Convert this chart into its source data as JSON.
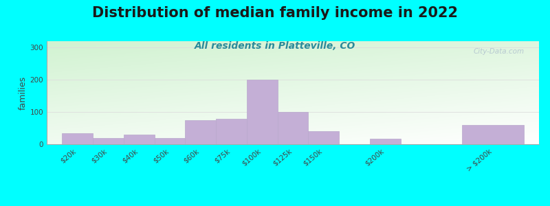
{
  "title": "Distribution of median family income in 2022",
  "subtitle": "All residents in Platteville, CO",
  "ylabel": "families",
  "bg_outer": "#00FFFF",
  "bar_color": "#c4afd6",
  "bar_edge_color": "#b8a8cc",
  "watermark": "City-Data.com",
  "categories": [
    "$20k",
    "$30k",
    "$40k",
    "$50k",
    "$60k",
    "$75k",
    "$100k",
    "$125k",
    "$150k",
    "$200k",
    "> $200k"
  ],
  "values": [
    35,
    20,
    30,
    20,
    75,
    80,
    200,
    100,
    40,
    18,
    60
  ],
  "bar_positions": [
    0,
    1,
    2,
    3,
    4,
    5,
    6,
    7,
    8,
    10,
    13
  ],
  "bar_widths": [
    1,
    1,
    1,
    1,
    1,
    1,
    1,
    1,
    1,
    1,
    2
  ],
  "ylim": [
    0,
    320
  ],
  "yticks": [
    0,
    100,
    200,
    300
  ],
  "title_fontsize": 15,
  "subtitle_fontsize": 10,
  "ylabel_fontsize": 9,
  "tick_fontsize": 7.5
}
